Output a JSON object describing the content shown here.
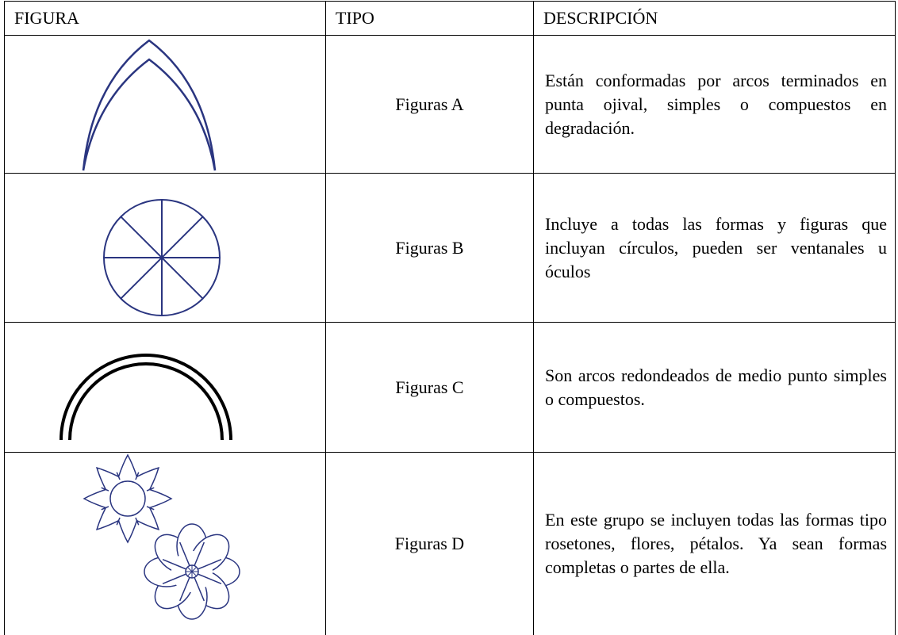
{
  "table": {
    "header": [
      "FIGURA",
      "TIPO",
      "DESCRIPCIÓN"
    ],
    "rows": [
      {
        "tipo": "Figuras A",
        "descripcion": "Están conformadas por arcos terminados en punta ojival, simples o compuestos en degradación."
      },
      {
        "tipo": "Figuras B",
        "descripcion": "Incluye a todas las formas y figuras que incluyan círculos, pueden ser ventanales u óculos"
      },
      {
        "tipo": "Figuras C",
        "descripcion": "Son arcos redondeados de medio punto simples o compuestos."
      },
      {
        "tipo": "Figuras D",
        "descripcion": "En este grupo se incluyen todas las formas tipo rosetones, flores, pétalos. Ya sean formas completas o partes de ella."
      }
    ]
  }
}
